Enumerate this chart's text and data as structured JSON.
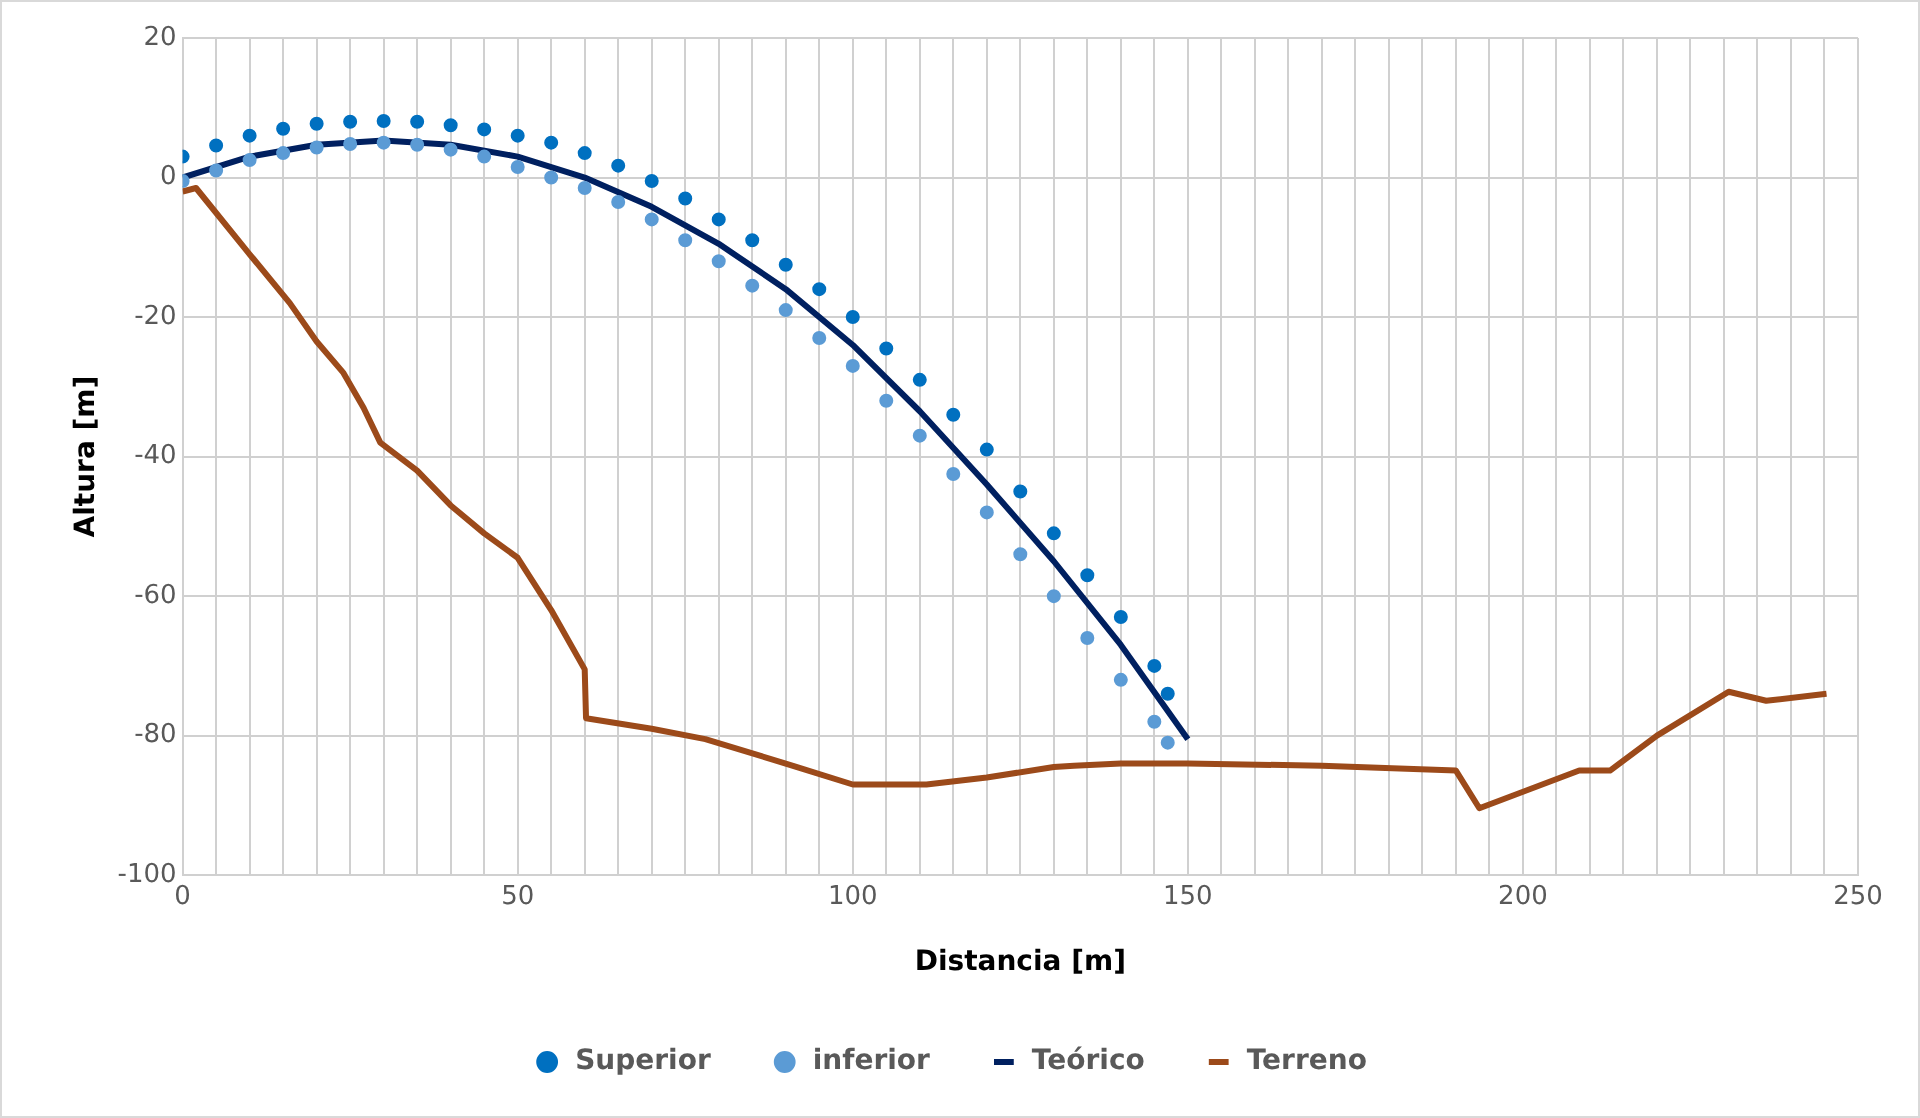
{
  "chart_data": {
    "type": "scatter",
    "xlabel": "Distancia [m]",
    "ylabel": "Altura [m]",
    "xlim": [
      0,
      250
    ],
    "ylim": [
      -100,
      20
    ],
    "xticks": [
      0,
      {
        "value": 5,
        "label": null
      },
      {
        "value": 10,
        "label": null
      },
      {
        "value": 15,
        "label": null
      },
      {
        "value": 20,
        "label": null
      },
      {
        "value": 25,
        "label": null
      },
      {
        "value": 30,
        "label": null
      },
      {
        "value": 35,
        "label": null
      },
      {
        "value": 40,
        "label": null
      },
      {
        "value": 45,
        "label": null
      },
      50,
      {
        "value": 55,
        "label": null
      },
      {
        "value": 60,
        "label": null
      },
      {
        "value": 65,
        "label": null
      },
      {
        "value": 70,
        "label": null
      },
      {
        "value": 75,
        "label": null
      },
      {
        "value": 80,
        "label": null
      },
      {
        "value": 85,
        "label": null
      },
      {
        "value": 90,
        "label": null
      },
      {
        "value": 95,
        "label": null
      },
      100,
      {
        "value": 105,
        "label": null
      },
      {
        "value": 110,
        "label": null
      },
      {
        "value": 115,
        "label": null
      },
      {
        "value": 120,
        "label": null
      },
      {
        "value": 125,
        "label": null
      },
      {
        "value": 130,
        "label": null
      },
      {
        "value": 135,
        "label": null
      },
      {
        "value": 140,
        "label": null
      },
      {
        "value": 145,
        "label": null
      },
      150,
      {
        "value": 155,
        "label": null
      },
      {
        "value": 160,
        "label": null
      },
      {
        "value": 165,
        "label": null
      },
      {
        "value": 170,
        "label": null
      },
      {
        "value": 175,
        "label": null
      },
      {
        "value": 180,
        "label": null
      },
      {
        "value": 185,
        "label": null
      },
      {
        "value": 190,
        "label": null
      },
      {
        "value": 195,
        "label": null
      },
      200,
      {
        "value": 205,
        "label": null
      },
      {
        "value": 210,
        "label": null
      },
      {
        "value": 215,
        "label": null
      },
      {
        "value": 220,
        "label": null
      },
      {
        "value": 225,
        "label": null
      },
      {
        "value": 230,
        "label": null
      },
      {
        "value": 235,
        "label": null
      },
      {
        "value": 240,
        "label": null
      },
      {
        "value": 245,
        "label": null
      },
      250
    ],
    "yticks": [
      -100,
      -80,
      -60,
      -40,
      -20,
      0,
      20
    ],
    "grid": true,
    "legend": "bottom",
    "series": [
      {
        "name": "Superior",
        "type": "scatter",
        "marker": "circle",
        "color": "#0070c0",
        "x": [
          0,
          5,
          10,
          15,
          20,
          25,
          30,
          35,
          40,
          45,
          50,
          55,
          60,
          65,
          70,
          75,
          80,
          85,
          90,
          95,
          100,
          105,
          110,
          115,
          120,
          125,
          130,
          135,
          140,
          145,
          147
        ],
        "values": [
          3,
          4.6,
          6,
          7,
          7.7,
          8,
          8.1,
          8,
          7.5,
          6.9,
          6,
          5,
          3.5,
          1.7,
          -0.5,
          -3,
          -6,
          -9,
          -12.5,
          -16,
          -20,
          -24.5,
          -29,
          -34,
          -39,
          -45,
          -51,
          -57,
          -63,
          -70,
          -74
        ]
      },
      {
        "name": "inferior",
        "type": "scatter",
        "marker": "circle",
        "color": "#5b9bd5",
        "x": [
          0,
          5,
          10,
          15,
          20,
          25,
          30,
          35,
          40,
          45,
          50,
          55,
          60,
          65,
          70,
          75,
          80,
          85,
          90,
          95,
          100,
          105,
          110,
          115,
          120,
          125,
          130,
          135,
          140,
          145,
          147
        ],
        "values": [
          -0.5,
          1,
          2.5,
          3.5,
          4.3,
          4.8,
          5,
          4.7,
          4,
          3,
          1.5,
          0,
          -1.5,
          -3.5,
          -6,
          -9,
          -12,
          -15.5,
          -19,
          -23,
          -27,
          -32,
          -37,
          -42.5,
          -48,
          -54,
          -60,
          -66,
          -72,
          -78,
          -81
        ]
      },
      {
        "name": "Teórico",
        "type": "line",
        "color": "#002060",
        "x": [
          0,
          10,
          20,
          30,
          40,
          50,
          60,
          70,
          80,
          90,
          100,
          110,
          120,
          130,
          140,
          150
        ],
        "values": [
          0,
          3,
          4.7,
          5.3,
          4.7,
          3,
          0,
          -4.2,
          -9.5,
          -16,
          -24,
          -33.5,
          -44,
          -55,
          -67,
          -80.5
        ]
      },
      {
        "name": "Terreno",
        "type": "line",
        "color": "#9c4a1a",
        "x": [
          0,
          2,
          10,
          16,
          20,
          24,
          27,
          29.5,
          35,
          40,
          45,
          50,
          55,
          60,
          60.2,
          70,
          78,
          90,
          100,
          111,
          120,
          130,
          133,
          140,
          150,
          170,
          190,
          193.5,
          208.4,
          213,
          220,
          230.7,
          236.3,
          245.3
        ],
        "values": [
          -2,
          -1.5,
          -11,
          -18,
          -23.5,
          -28,
          -33,
          -38,
          -42,
          -47,
          -51,
          -54.5,
          -62,
          -70.5,
          -77.5,
          -79,
          -80.5,
          -84,
          -87,
          -87,
          -86,
          -84.5,
          -84.3,
          -84,
          -84,
          -84.3,
          -85,
          -90.4,
          -85,
          -85,
          -80,
          -73.7,
          -75,
          -74
        ]
      }
    ]
  }
}
